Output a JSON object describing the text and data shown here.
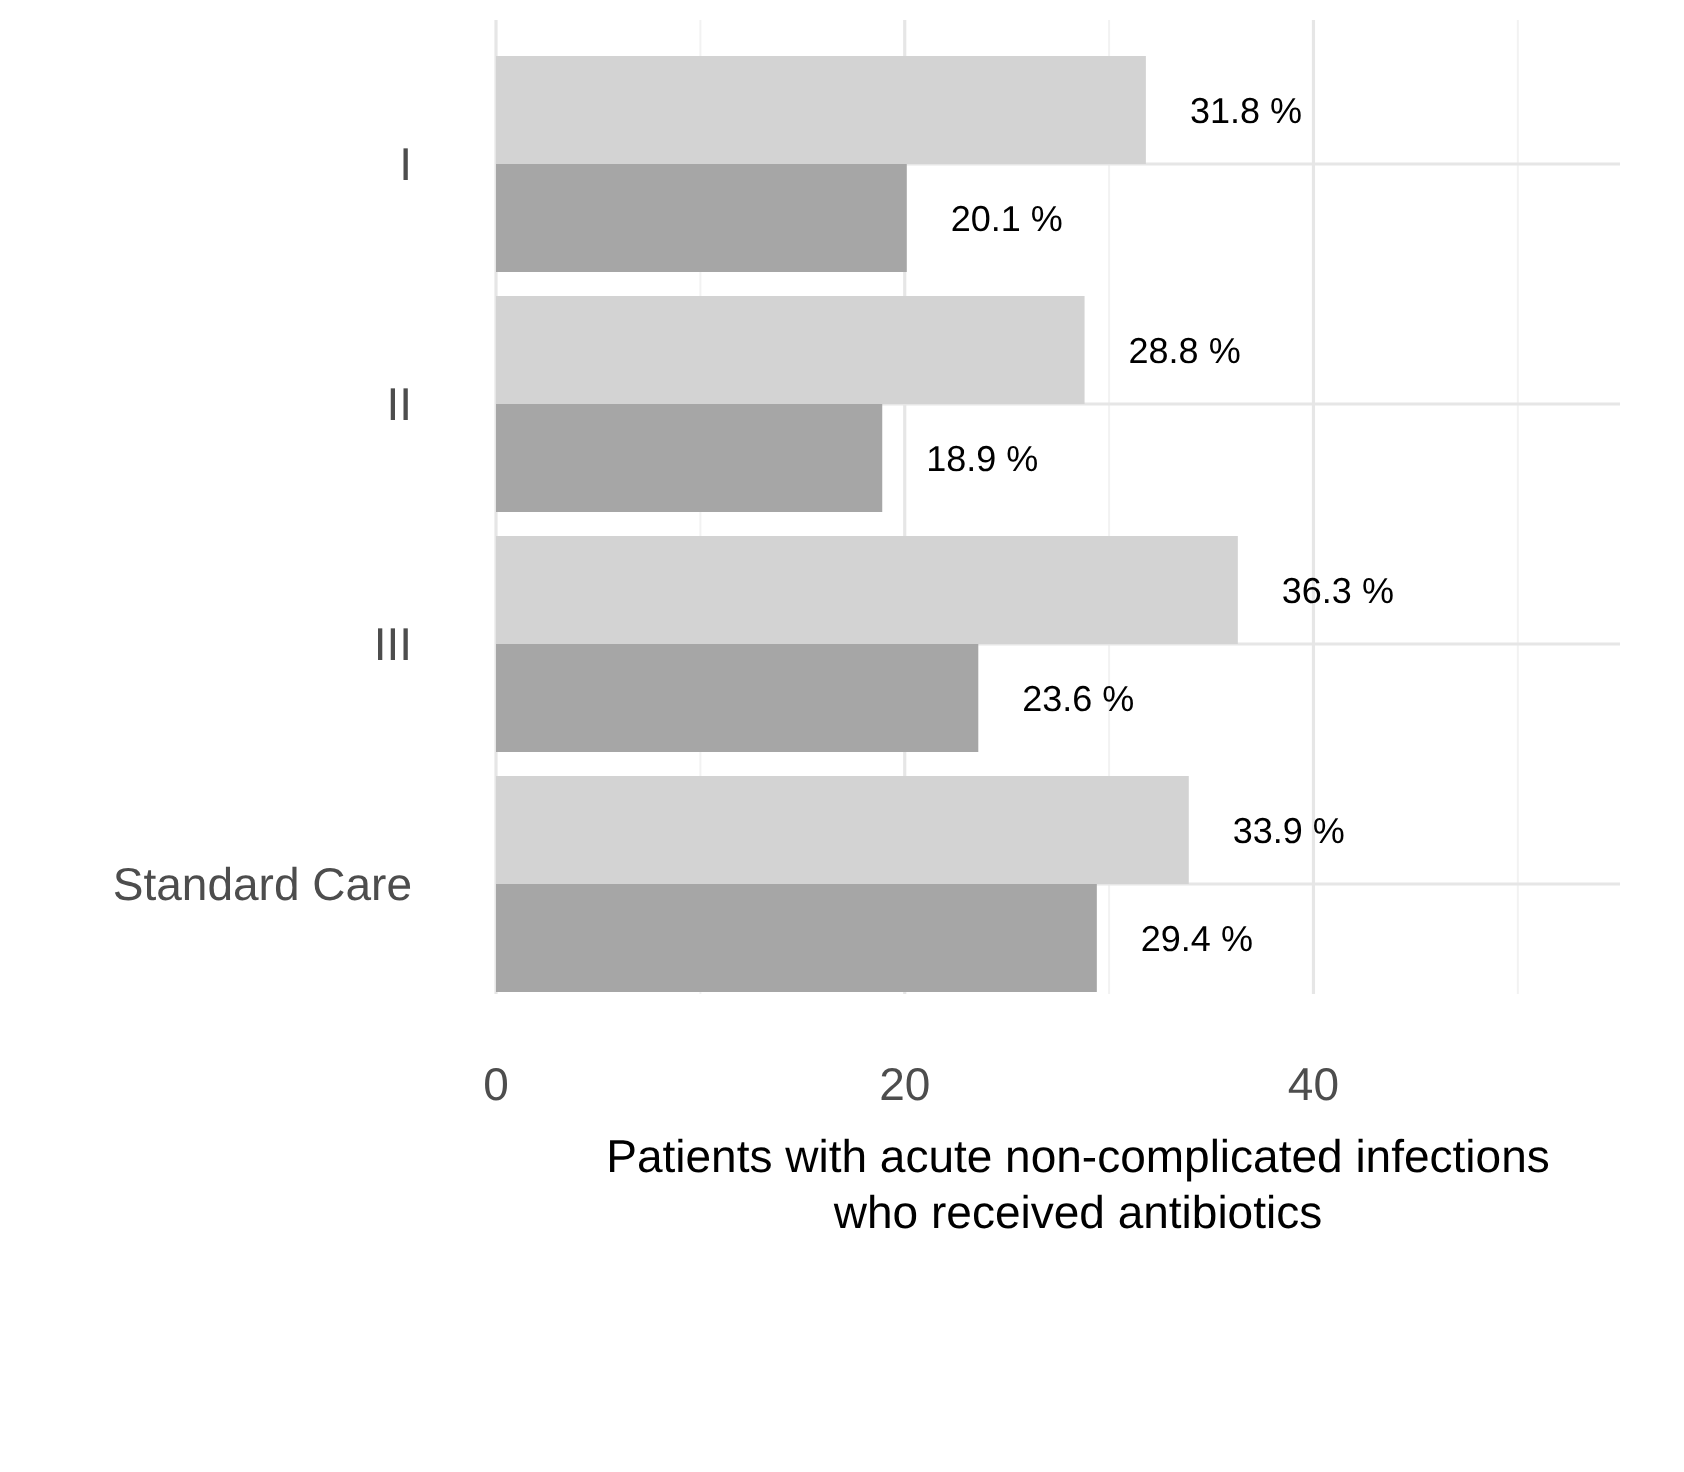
{
  "chart_data": {
    "type": "bar",
    "orientation": "horizontal",
    "categories": [
      "I",
      "II",
      "III",
      "Standard Care"
    ],
    "series": [
      {
        "color": "#d3d3d3",
        "values": [
          31.8,
          28.8,
          36.3,
          33.9
        ],
        "value_labels": [
          "31.8 %",
          "28.8 %",
          "36.3 %",
          "33.9 %"
        ]
      },
      {
        "color": "#a6a6a6",
        "values": [
          20.1,
          18.9,
          23.6,
          29.4
        ],
        "value_labels": [
          "20.1 %",
          "18.9 %",
          "23.6 %",
          "29.4 %"
        ]
      }
    ],
    "xlim": [
      0,
      55
    ],
    "xticks": [
      0,
      {
        "value": 10,
        "label": null
      },
      20,
      {
        "value": 30,
        "label": null
      },
      40,
      {
        "value": 50,
        "label": null
      }
    ],
    "xlabel": "Patients with acute non-complicated infections\nwho received antibiotics",
    "grid": true
  }
}
